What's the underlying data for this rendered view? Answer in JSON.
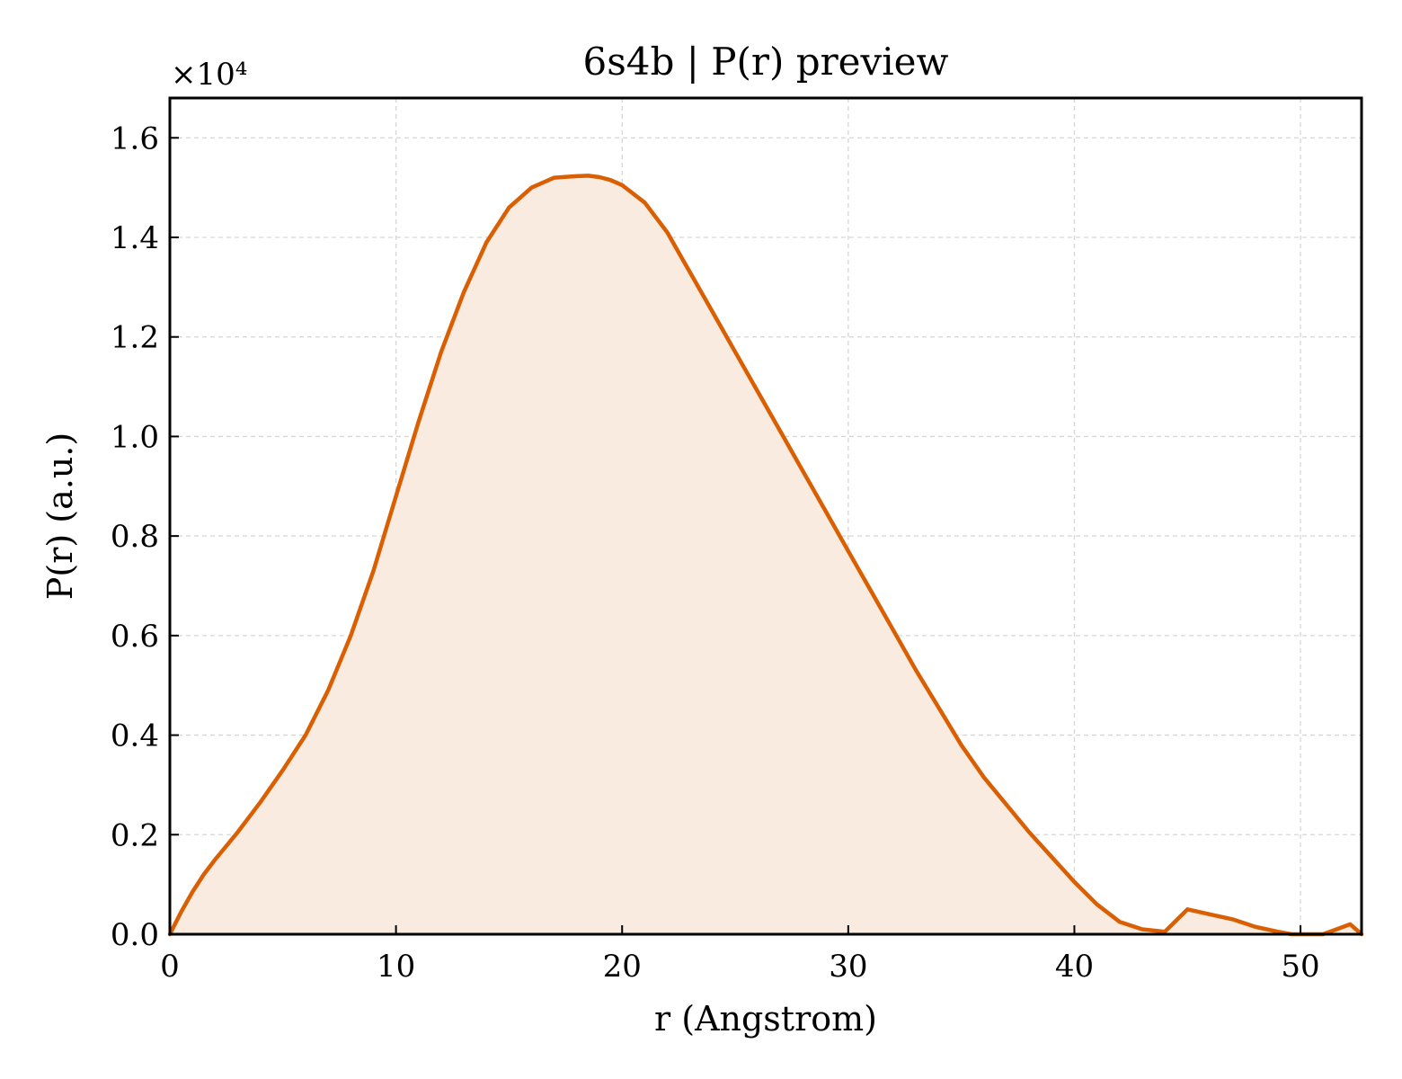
{
  "chart_data": {
    "type": "area",
    "title": "6s4b | P(r) preview",
    "xlabel": "r (Angstrom)",
    "ylabel": "P(r) (a.u.)",
    "y_offset_label": "×10⁴",
    "y_scale_factor": 10000,
    "xlim": [
      0,
      52.7
    ],
    "ylim": [
      0,
      16800
    ],
    "xticks": [
      0,
      10,
      20,
      30,
      40,
      50
    ],
    "yticks": [
      0,
      2000,
      4000,
      6000,
      8000,
      10000,
      12000,
      14000,
      16000
    ],
    "ytick_labels": [
      "0.0",
      "0.2",
      "0.4",
      "0.6",
      "0.8",
      "1.0",
      "1.2",
      "1.4",
      "1.6"
    ],
    "grid": true,
    "colors": {
      "line": "#d95f02",
      "fill": "#f9ebe0"
    },
    "series": [
      {
        "x": [
          0,
          0.5,
          1,
          1.5,
          2,
          3,
          4,
          5,
          6,
          7,
          8,
          9,
          10,
          11,
          12,
          13,
          14,
          15,
          16,
          17,
          18,
          18.5,
          19,
          19.5,
          20,
          21,
          22,
          23,
          24,
          25,
          26,
          27,
          28,
          29,
          30,
          31,
          32,
          33,
          34,
          35,
          36,
          37,
          38,
          39,
          40,
          41,
          42,
          43,
          44,
          45,
          46,
          47,
          48,
          49,
          49.6,
          50,
          51,
          52.2,
          52.7
        ],
        "y": [
          0,
          450,
          850,
          1200,
          1500,
          2050,
          2650,
          3300,
          4000,
          4900,
          6000,
          7300,
          8800,
          10300,
          11700,
          12900,
          13900,
          14600,
          15000,
          15200,
          15230,
          15240,
          15210,
          15150,
          15050,
          14700,
          14100,
          13300,
          12500,
          11700,
          10900,
          10100,
          9300,
          8500,
          7700,
          6900,
          6100,
          5300,
          4550,
          3800,
          3150,
          2600,
          2050,
          1550,
          1050,
          600,
          250,
          100,
          50,
          500,
          400,
          300,
          150,
          50,
          0,
          0,
          0,
          200,
          0
        ]
      }
    ]
  }
}
